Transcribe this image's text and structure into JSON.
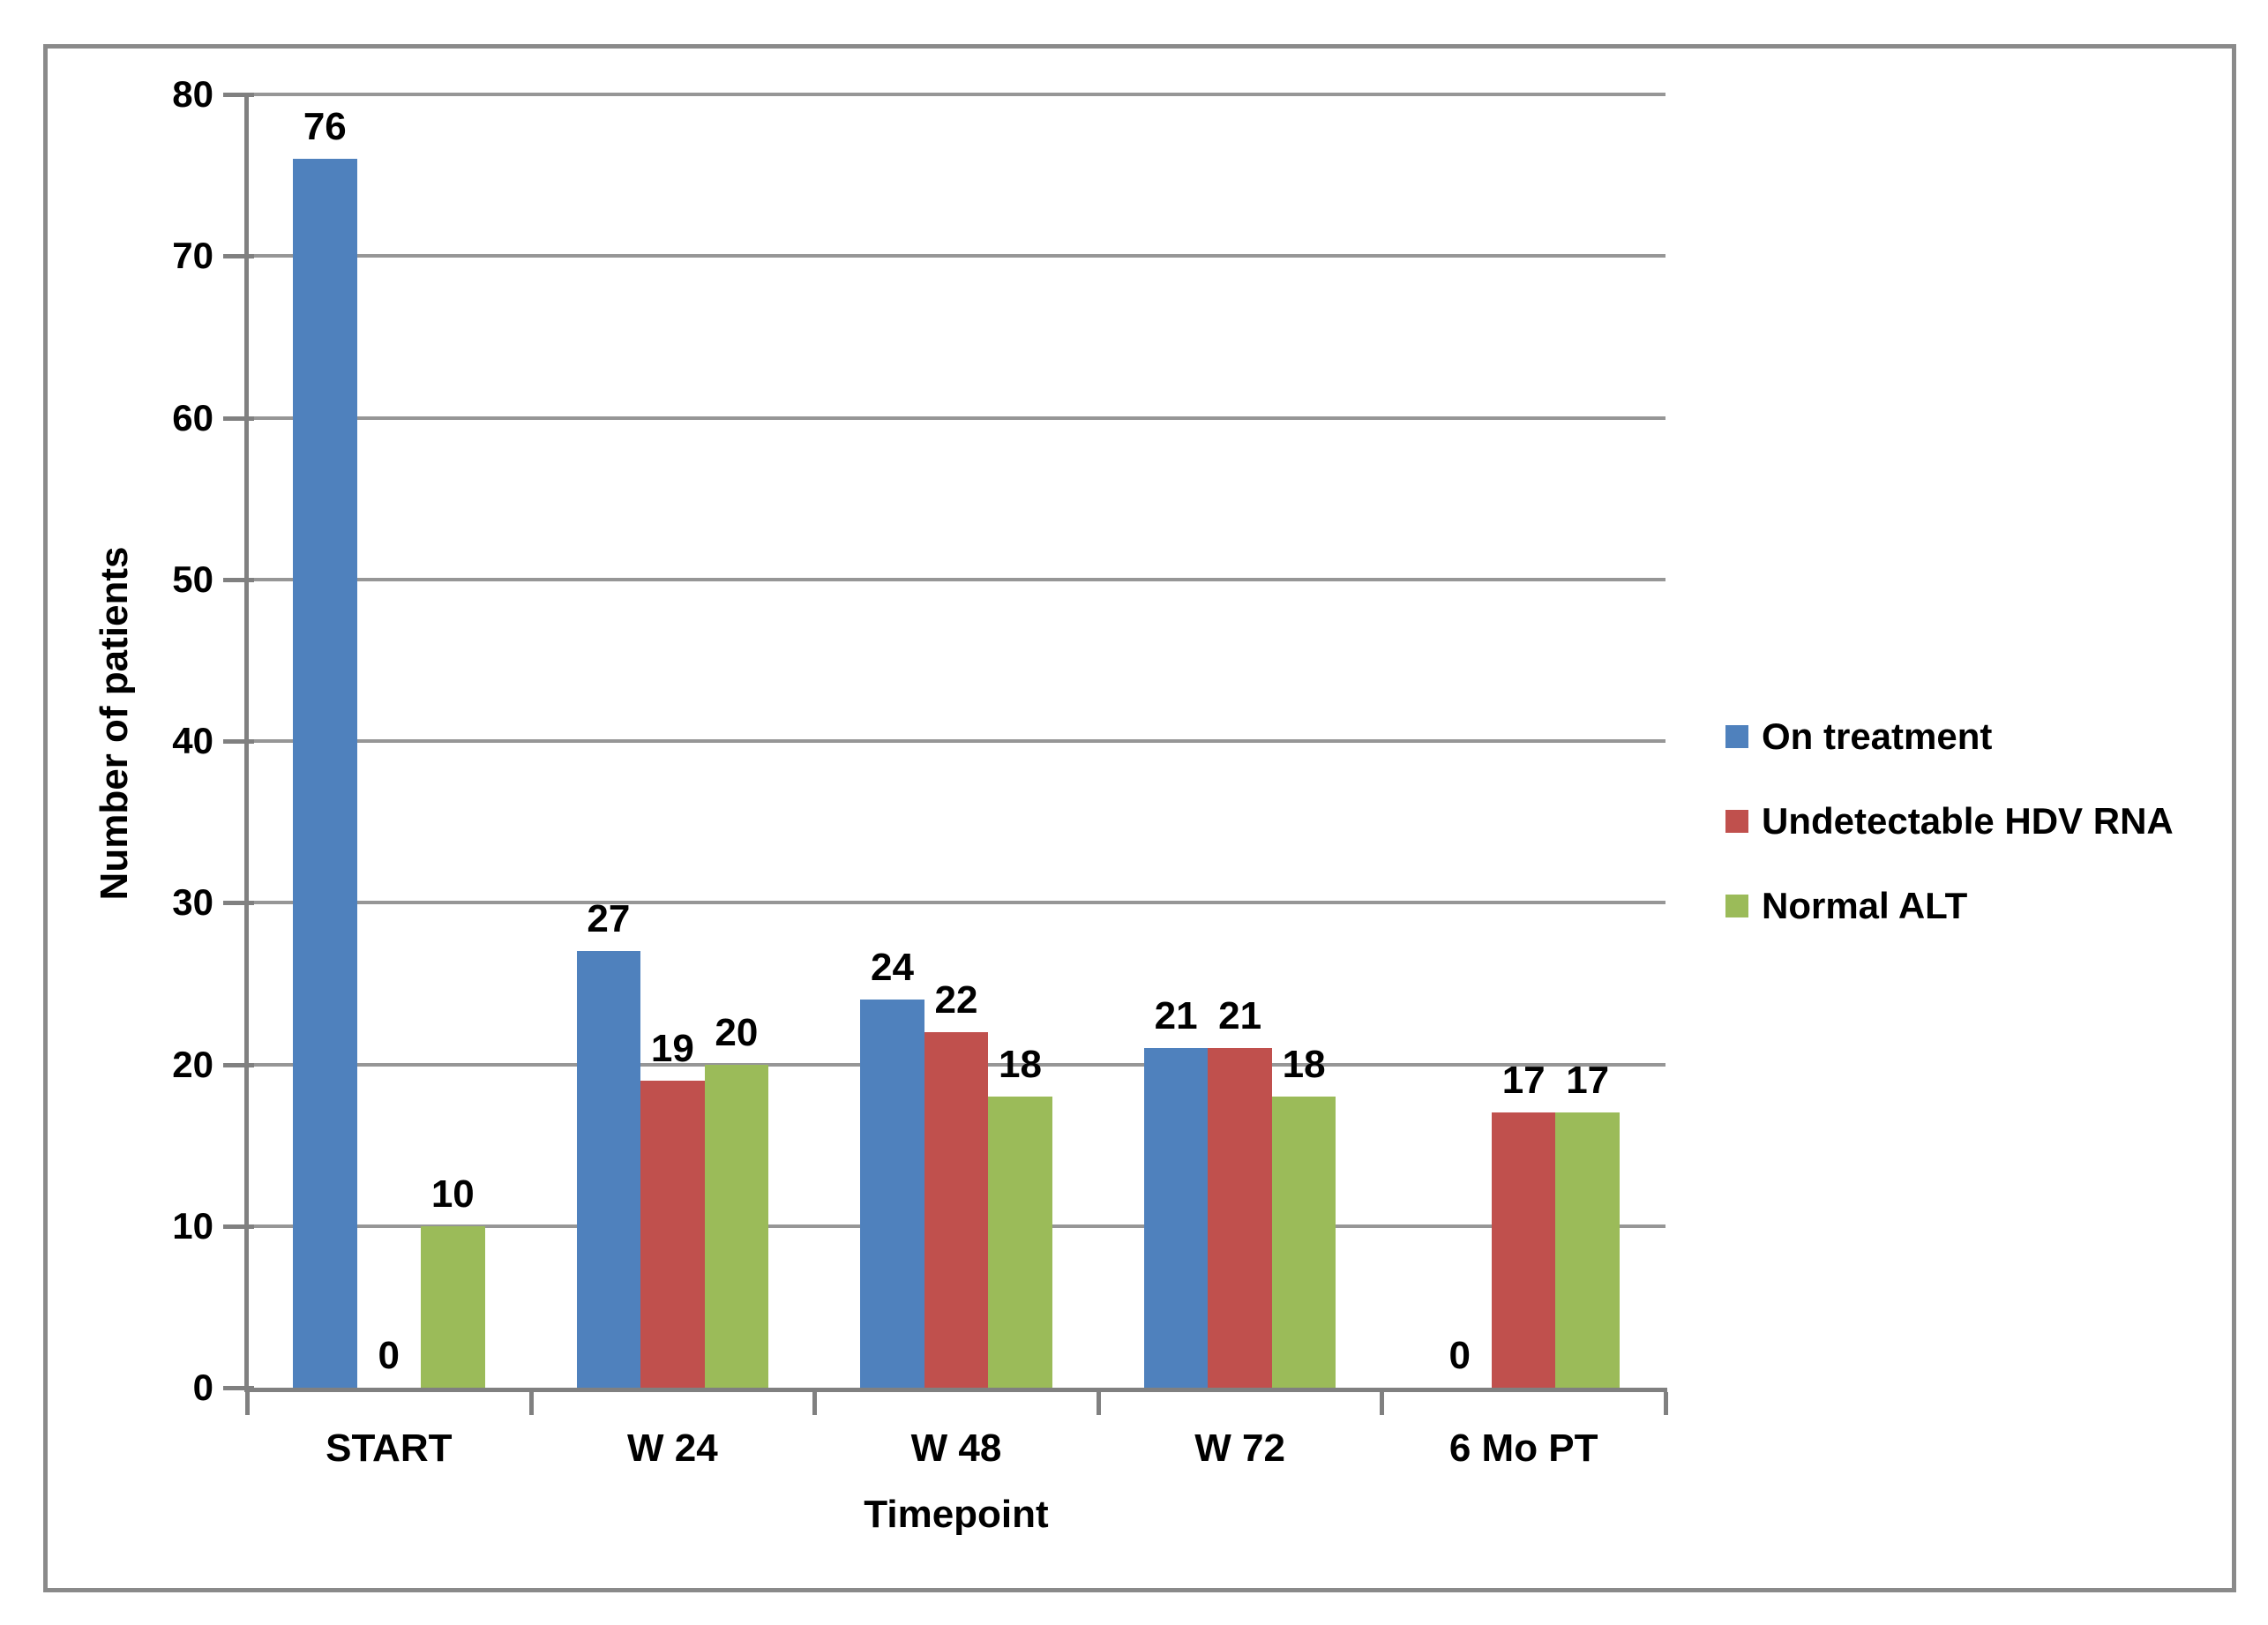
{
  "chart_data": {
    "type": "bar",
    "title": "",
    "categories": [
      "START",
      "W 24",
      "W 48",
      "W 72",
      "6 Mo PT"
    ],
    "series": [
      {
        "name": "On treatment",
        "color": "#4F81BD",
        "values": [
          76,
          27,
          24,
          21,
          0
        ]
      },
      {
        "name": "Undetectable HDV RNA",
        "color": "#C0504D",
        "values": [
          0,
          19,
          22,
          21,
          17
        ]
      },
      {
        "name": "Normal ALT",
        "color": "#9BBB59",
        "values": [
          10,
          20,
          18,
          18,
          17
        ]
      }
    ],
    "xlabel": "Timepoint",
    "ylabel": "Number of patients",
    "ylim": [
      0,
      80
    ],
    "yticks": [
      0,
      10,
      20,
      30,
      40,
      50,
      60,
      70,
      80
    ],
    "grid": true,
    "legend_position": "right",
    "data_labels": true
  },
  "colors": {
    "gridline": "#969696",
    "axis": "#808080",
    "frame_border": "#8a8a8a",
    "text": "#000000",
    "background": "#ffffff"
  }
}
